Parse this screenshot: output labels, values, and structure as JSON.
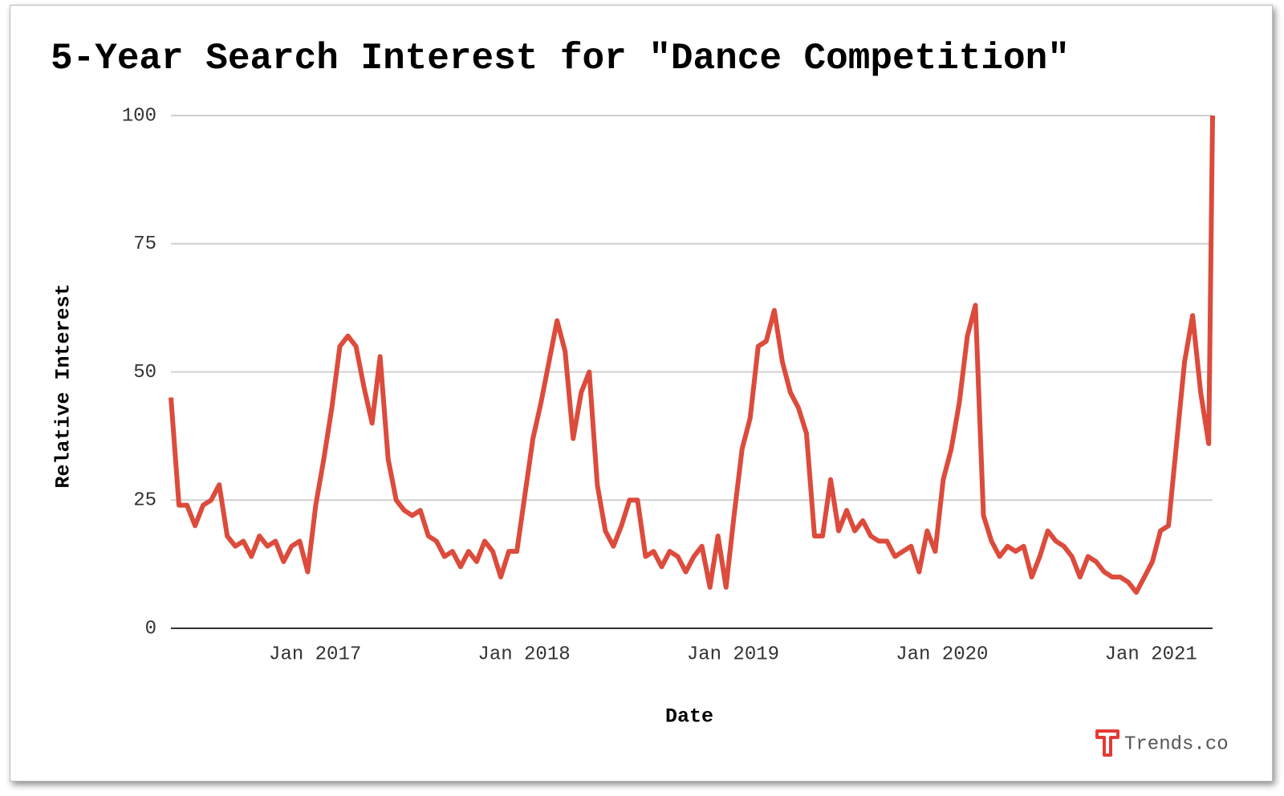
{
  "chart_data": {
    "type": "line",
    "title": "5-Year Search Interest for \"Dance Competition\"",
    "x_label": "Date",
    "y_label": "Relative Interest",
    "watermark": "Trends.co",
    "x": [
      2016.31,
      2016.3485,
      2016.387,
      2016.4255,
      2016.464,
      2016.5025,
      2016.541,
      2016.5795,
      2016.618,
      2016.6565,
      2016.695,
      2016.7335,
      2016.772,
      2016.8105,
      2016.849,
      2016.8875,
      2016.926,
      2016.9645,
      2017.003,
      2017.0415,
      2017.08,
      2017.1185,
      2017.157,
      2017.1955,
      2017.234,
      2017.2725,
      2017.311,
      2017.3495,
      2017.388,
      2017.4265,
      2017.465,
      2017.5035,
      2017.542,
      2017.5805,
      2017.619,
      2017.6575,
      2017.696,
      2017.7345,
      2017.773,
      2017.8115,
      2017.85,
      2017.8885,
      2017.927,
      2017.9655,
      2018.004,
      2018.0425,
      2018.081,
      2018.1195,
      2018.158,
      2018.1965,
      2018.235,
      2018.2735,
      2018.312,
      2018.3505,
      2018.389,
      2018.4275,
      2018.466,
      2018.5045,
      2018.543,
      2018.5815,
      2018.62,
      2018.6585,
      2018.697,
      2018.7355,
      2018.774,
      2018.8125,
      2018.851,
      2018.8895,
      2018.928,
      2018.9665,
      2019.005,
      2019.0435,
      2019.082,
      2019.1205,
      2019.159,
      2019.1975,
      2019.236,
      2019.2745,
      2019.313,
      2019.3515,
      2019.39,
      2019.4285,
      2019.467,
      2019.5055,
      2019.544,
      2019.5825,
      2019.621,
      2019.6595,
      2019.698,
      2019.7365,
      2019.775,
      2019.8135,
      2019.852,
      2019.8905,
      2019.929,
      2019.9675,
      2020.006,
      2020.0445,
      2020.083,
      2020.1215,
      2020.16,
      2020.1985,
      2020.237,
      2020.2755,
      2020.314,
      2020.3525,
      2020.391,
      2020.4295,
      2020.468,
      2020.5065,
      2020.545,
      2020.5835,
      2020.622,
      2020.6605,
      2020.699,
      2020.7375,
      2020.776,
      2020.8145,
      2020.853,
      2020.8915,
      2020.93,
      2020.9685,
      2021.007,
      2021.0455,
      2021.084,
      2021.1225,
      2021.161,
      2021.1995,
      2021.238,
      2021.2765,
      2021.295
    ],
    "series": [
      {
        "name": "Dance Competition",
        "color": "#dc4b3c",
        "values": [
          45,
          24,
          24,
          20,
          24,
          25,
          28,
          18,
          16,
          17,
          14,
          18,
          16,
          17,
          13,
          16,
          17,
          11,
          24,
          33,
          43,
          55,
          57,
          55,
          47,
          40,
          53,
          33,
          25,
          23,
          22,
          23,
          18,
          17,
          14,
          15,
          12,
          15,
          13,
          17,
          15,
          10,
          15,
          15,
          26,
          37,
          44,
          52,
          60,
          54,
          37,
          46,
          50,
          28,
          19,
          16,
          20,
          25,
          25,
          14,
          15,
          12,
          15,
          14,
          11,
          14,
          16,
          8,
          18,
          8,
          22,
          35,
          41,
          55,
          56,
          62,
          52,
          46,
          43,
          38,
          18,
          18,
          29,
          19,
          23,
          19,
          21,
          18,
          17,
          17,
          14,
          15,
          16,
          11,
          19,
          15,
          29,
          35,
          44,
          57,
          63,
          22,
          17,
          14,
          16,
          15,
          16,
          10,
          14,
          19,
          17,
          16,
          14,
          10,
          14,
          13,
          11,
          10,
          10,
          9,
          7,
          10,
          13,
          19,
          20,
          36,
          52,
          61,
          46,
          36,
          100
        ]
      }
    ],
    "xlim": [
      2016.31,
      2021.295
    ],
    "xticks": [
      {
        "value": 2017,
        "label": "Jan 2017"
      },
      {
        "value": 2018,
        "label": "Jan 2018"
      },
      {
        "value": 2019,
        "label": "Jan 2019"
      },
      {
        "value": 2020,
        "label": "Jan 2020"
      },
      {
        "value": 2021,
        "label": "Jan 2021"
      }
    ],
    "ylim": [
      0,
      100
    ],
    "yticks": [
      0,
      25,
      50,
      75,
      100
    ],
    "grid": true
  }
}
